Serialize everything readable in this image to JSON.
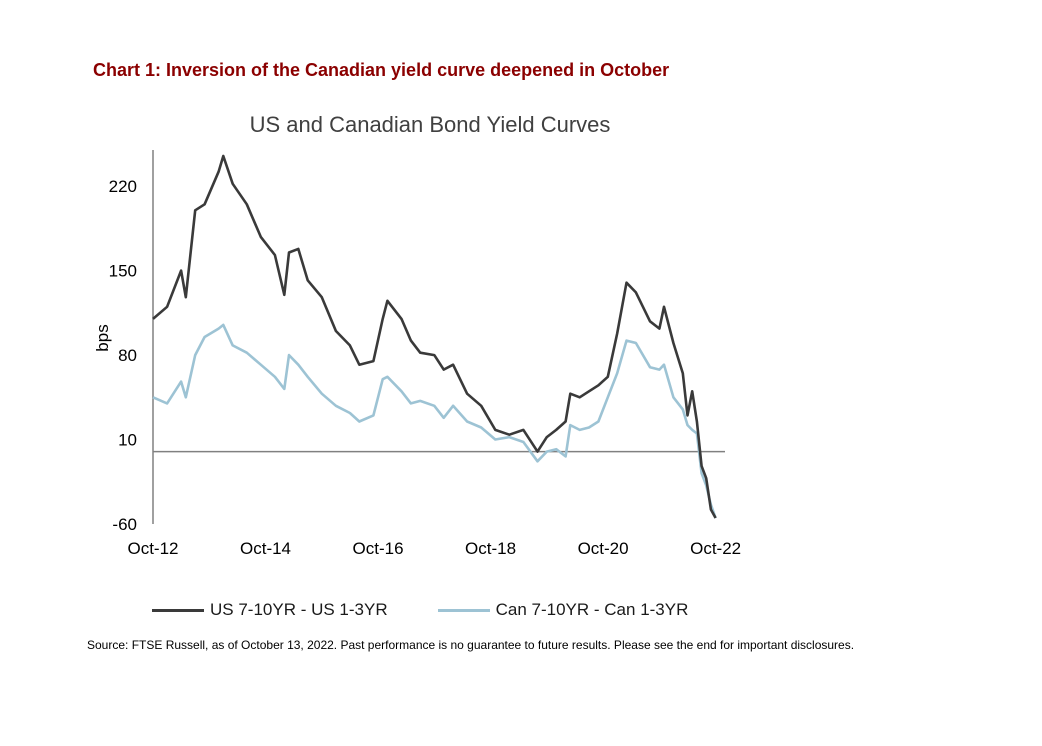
{
  "heading": "Chart 1: Inversion of the Canadian yield curve deepened in October",
  "source": "Source: FTSE Russell, as of October 13, 2022. Past performance is no guarantee to future results. Please see the end for important disclosures.",
  "colors": {
    "heading": "#8b0000",
    "us": "#3a3a3a",
    "can": "#9dc3d4",
    "axis": "#808080"
  },
  "chart_data": {
    "type": "line",
    "title": "US and Canadian Bond Yield Curves",
    "xlabel": "",
    "ylabel": "bps",
    "ylim": [
      -60,
      250
    ],
    "xlim": [
      "2012-10",
      "2022-12"
    ],
    "yticks": [
      220,
      150,
      80,
      10,
      -60
    ],
    "xticks": [
      {
        "label": "Oct-12",
        "x": "2012-10"
      },
      {
        "label": "Oct-14",
        "x": "2014-10"
      },
      {
        "label": "Oct-16",
        "x": "2016-10"
      },
      {
        "label": "Oct-18",
        "x": "2018-10"
      },
      {
        "label": "Oct-20",
        "x": "2020-10"
      },
      {
        "label": "Oct-22",
        "x": "2022-10"
      }
    ],
    "reference_line": 0,
    "grid": false,
    "legend_position": "bottom",
    "series": [
      {
        "name": "US 7-10YR - US 1-3YR",
        "color": "#3a3a3a",
        "points": [
          [
            "2012-10",
            110
          ],
          [
            "2013-01",
            120
          ],
          [
            "2013-04",
            150
          ],
          [
            "2013-05",
            128
          ],
          [
            "2013-07",
            200
          ],
          [
            "2013-09",
            205
          ],
          [
            "2013-12",
            232
          ],
          [
            "2014-01",
            245
          ],
          [
            "2014-03",
            222
          ],
          [
            "2014-06",
            205
          ],
          [
            "2014-09",
            178
          ],
          [
            "2014-12",
            163
          ],
          [
            "2015-02",
            130
          ],
          [
            "2015-03",
            165
          ],
          [
            "2015-05",
            168
          ],
          [
            "2015-07",
            142
          ],
          [
            "2015-10",
            128
          ],
          [
            "2016-01",
            100
          ],
          [
            "2016-04",
            88
          ],
          [
            "2016-06",
            72
          ],
          [
            "2016-09",
            75
          ],
          [
            "2016-11",
            110
          ],
          [
            "2016-12",
            125
          ],
          [
            "2017-03",
            110
          ],
          [
            "2017-05",
            92
          ],
          [
            "2017-07",
            82
          ],
          [
            "2017-10",
            80
          ],
          [
            "2017-12",
            68
          ],
          [
            "2018-02",
            72
          ],
          [
            "2018-05",
            48
          ],
          [
            "2018-08",
            38
          ],
          [
            "2018-11",
            18
          ],
          [
            "2019-02",
            14
          ],
          [
            "2019-05",
            18
          ],
          [
            "2019-08",
            0
          ],
          [
            "2019-10",
            12
          ],
          [
            "2019-12",
            18
          ],
          [
            "2020-02",
            25
          ],
          [
            "2020-03",
            48
          ],
          [
            "2020-05",
            45
          ],
          [
            "2020-07",
            50
          ],
          [
            "2020-09",
            55
          ],
          [
            "2020-11",
            62
          ],
          [
            "2021-01",
            98
          ],
          [
            "2021-03",
            140
          ],
          [
            "2021-05",
            132
          ],
          [
            "2021-08",
            108
          ],
          [
            "2021-10",
            102
          ],
          [
            "2021-11",
            120
          ],
          [
            "2022-01",
            90
          ],
          [
            "2022-03",
            65
          ],
          [
            "2022-04",
            30
          ],
          [
            "2022-05",
            50
          ],
          [
            "2022-06",
            25
          ],
          [
            "2022-07",
            -12
          ],
          [
            "2022-08",
            -22
          ],
          [
            "2022-09",
            -48
          ],
          [
            "2022-10",
            -55
          ]
        ]
      },
      {
        "name": "Can 7-10YR - Can 1-3YR",
        "color": "#9dc3d4",
        "points": [
          [
            "2012-10",
            45
          ],
          [
            "2013-01",
            40
          ],
          [
            "2013-04",
            58
          ],
          [
            "2013-05",
            45
          ],
          [
            "2013-07",
            80
          ],
          [
            "2013-09",
            95
          ],
          [
            "2013-12",
            102
          ],
          [
            "2014-01",
            105
          ],
          [
            "2014-03",
            88
          ],
          [
            "2014-06",
            82
          ],
          [
            "2014-09",
            72
          ],
          [
            "2014-12",
            62
          ],
          [
            "2015-02",
            52
          ],
          [
            "2015-03",
            80
          ],
          [
            "2015-05",
            72
          ],
          [
            "2015-07",
            62
          ],
          [
            "2015-10",
            48
          ],
          [
            "2016-01",
            38
          ],
          [
            "2016-04",
            32
          ],
          [
            "2016-06",
            25
          ],
          [
            "2016-09",
            30
          ],
          [
            "2016-11",
            60
          ],
          [
            "2016-12",
            62
          ],
          [
            "2017-03",
            50
          ],
          [
            "2017-05",
            40
          ],
          [
            "2017-07",
            42
          ],
          [
            "2017-10",
            38
          ],
          [
            "2017-12",
            28
          ],
          [
            "2018-02",
            38
          ],
          [
            "2018-05",
            25
          ],
          [
            "2018-08",
            20
          ],
          [
            "2018-11",
            10
          ],
          [
            "2019-02",
            12
          ],
          [
            "2019-05",
            8
          ],
          [
            "2019-08",
            -8
          ],
          [
            "2019-10",
            0
          ],
          [
            "2019-12",
            2
          ],
          [
            "2020-02",
            -4
          ],
          [
            "2020-03",
            22
          ],
          [
            "2020-05",
            18
          ],
          [
            "2020-07",
            20
          ],
          [
            "2020-09",
            25
          ],
          [
            "2020-11",
            45
          ],
          [
            "2021-01",
            65
          ],
          [
            "2021-03",
            92
          ],
          [
            "2021-05",
            90
          ],
          [
            "2021-08",
            70
          ],
          [
            "2021-10",
            68
          ],
          [
            "2021-11",
            72
          ],
          [
            "2022-01",
            45
          ],
          [
            "2022-03",
            35
          ],
          [
            "2022-04",
            22
          ],
          [
            "2022-05",
            18
          ],
          [
            "2022-06",
            15
          ],
          [
            "2022-07",
            -18
          ],
          [
            "2022-08",
            -28
          ],
          [
            "2022-09",
            -44
          ],
          [
            "2022-10",
            -55
          ]
        ]
      }
    ]
  }
}
